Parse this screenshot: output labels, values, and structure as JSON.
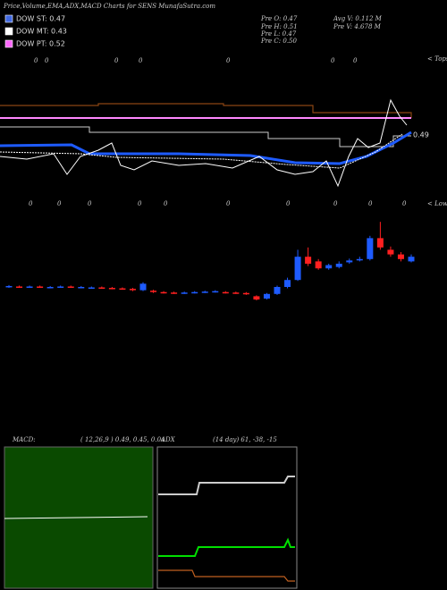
{
  "chart_data": {
    "type": "candlestick",
    "title": "Price,Volume,EMA,ADX,MACD Charts for SENS MunafaSutra.com",
    "legend": [
      {
        "name": "DOW ST: 0.47",
        "color": "#4169e1"
      },
      {
        "name": "DOW MT: 0.43",
        "color": "#ffffff"
      },
      {
        "name": "DOW PT: 0.52",
        "color": "#ff66ff"
      }
    ],
    "stats": [
      "Pre  O: 0.47",
      "Pre  H: 0.51",
      "Pre  L: 0.47",
      "Pre  C: 0.50",
      "Avg V: 0.112  M",
      "Pre  V: 4.678  M"
    ],
    "last_label": "0.49",
    "tops_label": "< Tops",
    "lows_label": "< Lows",
    "tops": [
      "0",
      "0",
      "0",
      "0",
      "0",
      "0",
      "0"
    ],
    "lows": [
      "0",
      "0",
      "0",
      "0",
      "0",
      "0",
      "0",
      "0",
      "0",
      "0"
    ],
    "ylim": [
      0.35,
      0.6
    ],
    "up_color": "#1e5bff",
    "down_color": "#ff2020",
    "candles": {
      "open": [
        0.425,
        0.426,
        0.425,
        0.426,
        0.424,
        0.425,
        0.426,
        0.424,
        0.423,
        0.424,
        0.423,
        0.422,
        0.421,
        0.418,
        0.417,
        0.414,
        0.413,
        0.412,
        0.413,
        0.414,
        0.415,
        0.414,
        0.413,
        0.412,
        0.405,
        0.4,
        0.41,
        0.425,
        0.44,
        0.49,
        0.48,
        0.465,
        0.468,
        0.478,
        0.483,
        0.485,
        0.53,
        0.505,
        0.495,
        0.48
      ],
      "close": [
        0.427,
        0.425,
        0.426,
        0.425,
        0.425,
        0.426,
        0.425,
        0.425,
        0.424,
        0.423,
        0.422,
        0.421,
        0.418,
        0.432,
        0.414,
        0.413,
        0.412,
        0.413,
        0.414,
        0.415,
        0.416,
        0.413,
        0.412,
        0.41,
        0.398,
        0.41,
        0.425,
        0.44,
        0.49,
        0.475,
        0.465,
        0.472,
        0.475,
        0.482,
        0.485,
        0.53,
        0.51,
        0.495,
        0.485,
        0.49
      ],
      "high": [
        0.429,
        0.428,
        0.428,
        0.428,
        0.427,
        0.428,
        0.428,
        0.427,
        0.426,
        0.426,
        0.425,
        0.424,
        0.423,
        0.435,
        0.419,
        0.416,
        0.415,
        0.415,
        0.416,
        0.417,
        0.418,
        0.416,
        0.415,
        0.414,
        0.407,
        0.412,
        0.428,
        0.445,
        0.505,
        0.51,
        0.485,
        0.475,
        0.48,
        0.486,
        0.49,
        0.535,
        0.565,
        0.512,
        0.5,
        0.495
      ],
      "low": [
        0.423,
        0.423,
        0.423,
        0.423,
        0.422,
        0.423,
        0.423,
        0.422,
        0.421,
        0.421,
        0.42,
        0.419,
        0.416,
        0.416,
        0.412,
        0.411,
        0.41,
        0.41,
        0.411,
        0.412,
        0.413,
        0.411,
        0.41,
        0.408,
        0.396,
        0.398,
        0.408,
        0.422,
        0.438,
        0.47,
        0.462,
        0.462,
        0.465,
        0.475,
        0.48,
        0.482,
        0.505,
        0.49,
        0.48,
        0.478
      ]
    },
    "macd_label": "MACD:",
    "macd_values": "( 12,26,9 ) 0.49, 0.45, 0.04",
    "adx_label": "ADX",
    "adx_values": "(14  day) 61, -38, -15"
  }
}
